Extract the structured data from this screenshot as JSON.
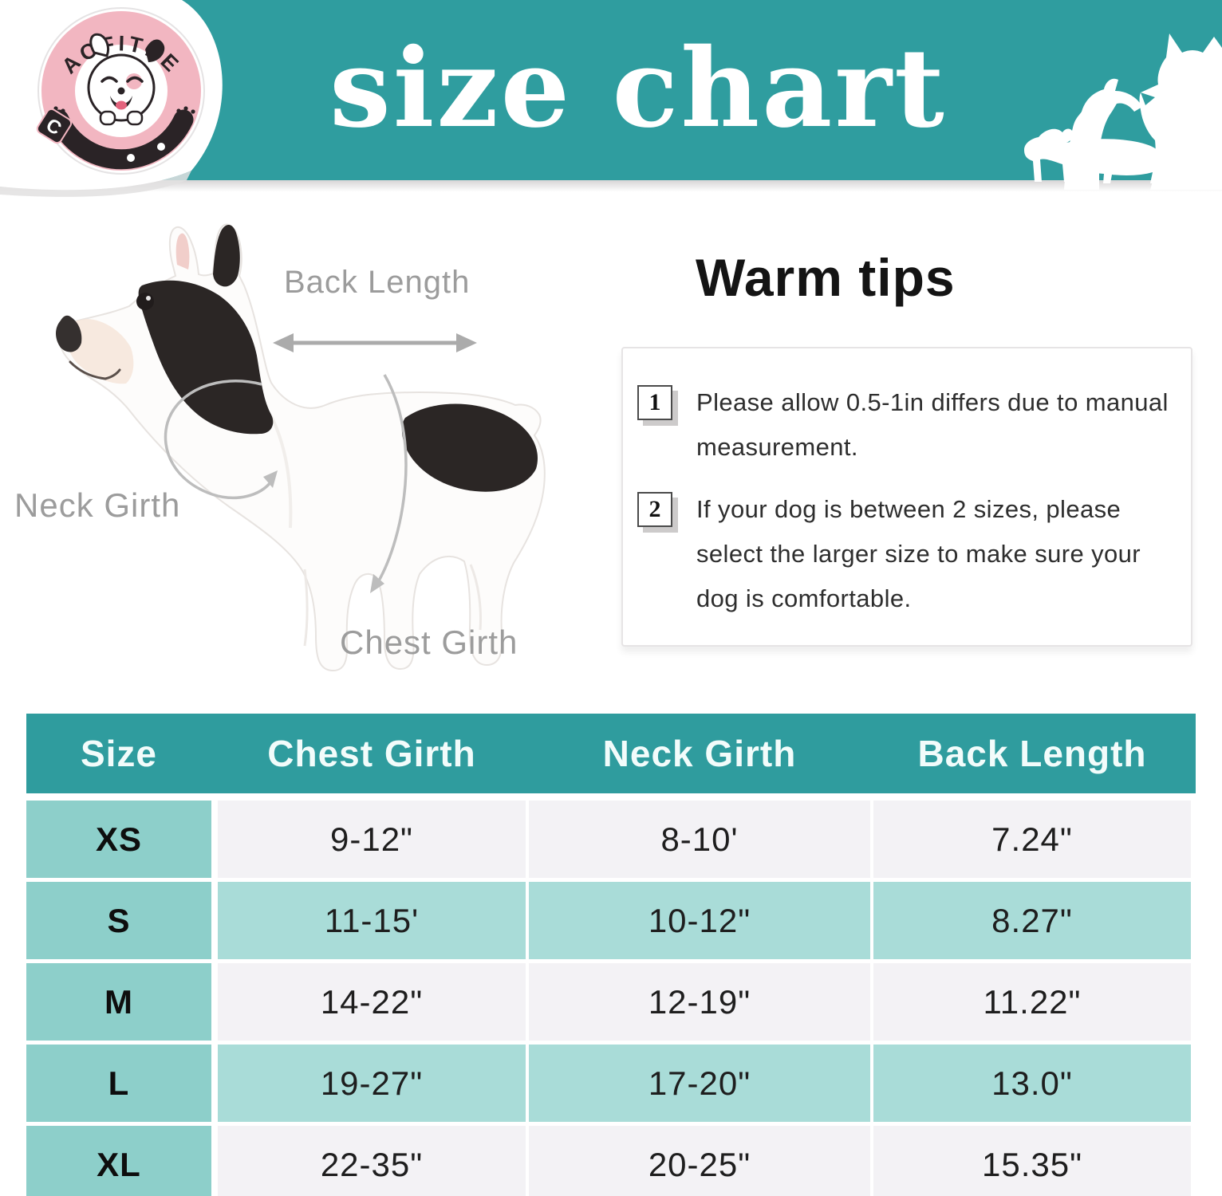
{
  "banner": {
    "title": "size chart",
    "brand": "AOFITEE",
    "buckle_letter": "C"
  },
  "diagram": {
    "back_length_label": "Back Length",
    "neck_girth_label": "Neck Girth",
    "chest_girth_label": "Chest Girth"
  },
  "warm_tips": {
    "title": "Warm tips",
    "tips": [
      {
        "number": "1",
        "text": "Please allow 0.5-1in differs due to manual measurement."
      },
      {
        "number": "2",
        "text": "If your dog is between 2 sizes, please select the larger size to make sure your dog is comfortable."
      }
    ]
  },
  "chart_data": {
    "type": "table",
    "title": "size chart",
    "columns": [
      "Size",
      "Chest Girth",
      "Neck Girth",
      "Back Length"
    ],
    "rows": [
      [
        "XS",
        "9-12\"",
        "8-10'",
        "7.24\""
      ],
      [
        "S",
        "11-15'",
        "10-12\"",
        "8.27\""
      ],
      [
        "M",
        "14-22\"",
        "12-19\"",
        "11.22\""
      ],
      [
        "L",
        "19-27\"",
        "17-20\"",
        "13.0\""
      ],
      [
        "XL",
        "22-35\"",
        "20-25\"",
        "15.35\""
      ]
    ]
  },
  "colors": {
    "teal": "#2F9D9F",
    "size_column": "#8DCFCA",
    "row_teal": "#A9DCD8",
    "row_light": "#F3F2F5",
    "label_gray": "#9C9C9C",
    "logo_pink": "#F2B6C1",
    "logo_dark": "#2A2326"
  }
}
